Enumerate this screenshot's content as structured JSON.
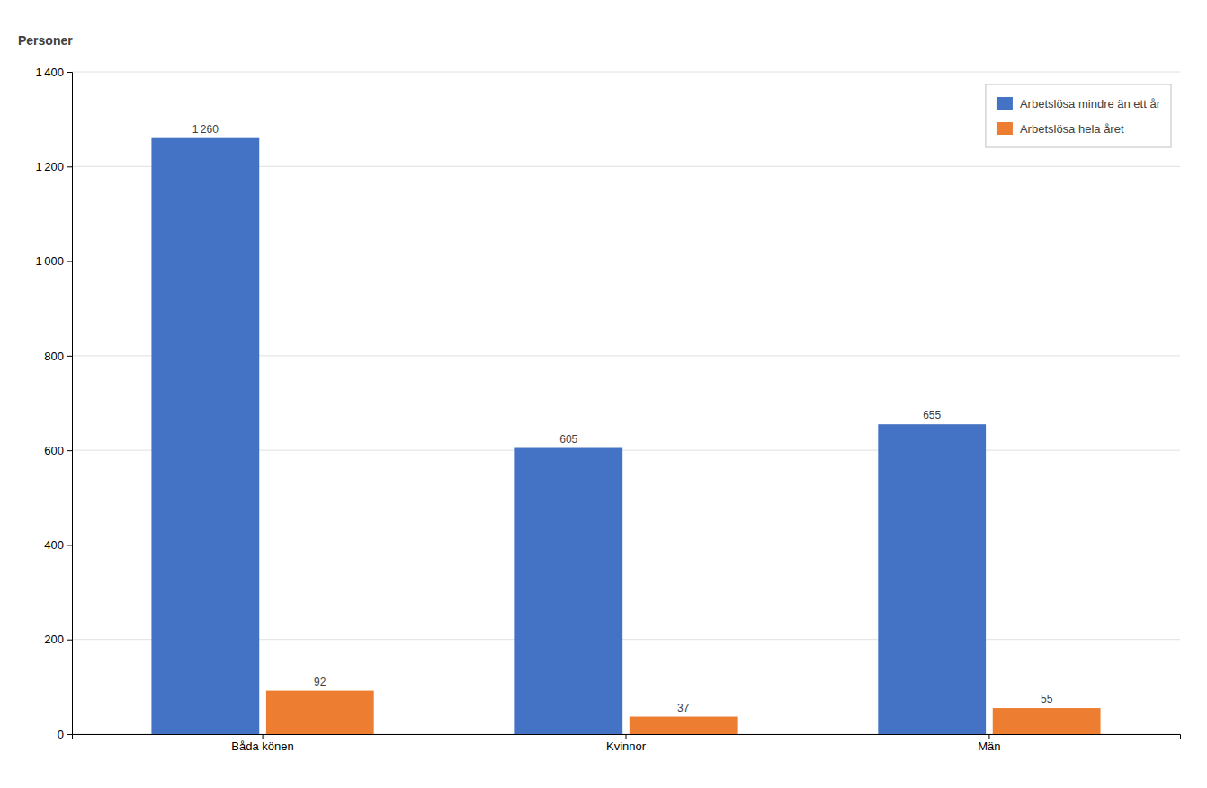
{
  "chart_data": {
    "type": "bar",
    "ylabel": "Personer",
    "categories": [
      "Båda könen",
      "Kvinnor",
      "Män"
    ],
    "series": [
      {
        "name": "Arbetslösa mindre än ett år",
        "color": "#4472C4",
        "values": [
          1260,
          605,
          655
        ],
        "value_labels": [
          "1 260",
          "605",
          "655"
        ]
      },
      {
        "name": "Arbetslösa hela året",
        "color": "#ED7D31",
        "values": [
          92,
          37,
          55
        ]
      }
    ],
    "ylim": [
      0,
      1400
    ],
    "yticks": [
      0,
      200,
      400,
      600,
      800,
      {
        "value": 1000,
        "label": "1 000"
      },
      {
        "value": 1200,
        "label": "1 200"
      },
      {
        "value": 1400,
        "label": "1 400"
      }
    ],
    "grid": true,
    "legend": "upper right",
    "data_labels": true
  }
}
